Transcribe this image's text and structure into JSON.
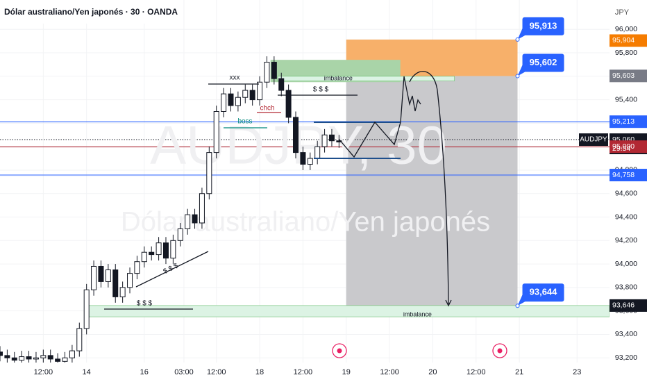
{
  "chart_data": {
    "type": "candlestick",
    "title": "Dólar australiano/Yen japonés · 30 · OANDA",
    "watermark": "AUDJPY, 30",
    "watermark_subtitle": "Dólar australiano/Yen japonés",
    "currency": "JPY",
    "symbol": "AUDJPY",
    "countdown": "29:54",
    "x": [
      0,
      4,
      8,
      12,
      16,
      20,
      24,
      28,
      32,
      36,
      40,
      44,
      48,
      52,
      56,
      60,
      64,
      68,
      72,
      76,
      80,
      84,
      88,
      92,
      96,
      100,
      104,
      108,
      112,
      116,
      120,
      124,
      128,
      132,
      136,
      140,
      144,
      148,
      152,
      156,
      160,
      164,
      168,
      172,
      176,
      180,
      184,
      188
    ],
    "open": [
      93.25,
      93.22,
      93.2,
      93.18,
      93.21,
      93.19,
      93.2,
      93.22,
      93.19,
      93.17,
      93.2,
      93.26,
      93.45,
      93.78,
      93.98,
      93.85,
      93.95,
      93.72,
      93.8,
      93.92,
      94.02,
      94.1,
      94.08,
      94.18,
      94.05,
      94.2,
      94.3,
      94.42,
      94.35,
      94.6,
      94.95,
      95.3,
      95.45,
      95.35,
      95.42,
      95.48,
      95.4,
      95.55,
      95.72,
      95.58,
      95.48,
      95.25,
      94.95,
      94.85,
      94.9,
      95.0,
      95.1,
      95.05
    ],
    "high": [
      93.3,
      93.27,
      93.25,
      93.26,
      93.26,
      93.25,
      93.27,
      93.27,
      93.24,
      93.25,
      93.31,
      93.5,
      93.83,
      94.03,
      94.03,
      94.0,
      94.0,
      93.85,
      93.97,
      94.07,
      94.15,
      94.15,
      94.23,
      94.23,
      94.25,
      94.35,
      94.47,
      94.47,
      94.65,
      95.0,
      95.35,
      95.5,
      95.5,
      95.47,
      95.53,
      95.53,
      95.6,
      95.77,
      95.77,
      95.63,
      95.53,
      95.3,
      95.0,
      94.95,
      95.05,
      95.15,
      95.15,
      95.1
    ],
    "low": [
      93.17,
      93.15,
      93.13,
      93.13,
      93.14,
      93.14,
      93.15,
      93.14,
      93.12,
      93.12,
      93.15,
      93.21,
      93.4,
      93.73,
      93.8,
      93.8,
      93.67,
      93.67,
      93.75,
      93.87,
      93.97,
      94.03,
      94.03,
      94.0,
      94.0,
      94.15,
      94.25,
      94.3,
      94.3,
      94.55,
      94.9,
      95.25,
      95.3,
      95.3,
      95.37,
      95.35,
      95.35,
      95.5,
      95.53,
      95.43,
      95.2,
      94.9,
      94.8,
      94.8,
      94.85,
      94.95,
      95.0,
      94.99
    ],
    "close": [
      93.22,
      93.2,
      93.18,
      93.21,
      93.19,
      93.2,
      93.22,
      93.19,
      93.17,
      93.2,
      93.26,
      93.45,
      93.78,
      93.98,
      93.85,
      93.95,
      93.72,
      93.8,
      93.92,
      94.02,
      94.1,
      94.08,
      94.18,
      94.05,
      94.2,
      94.3,
      94.42,
      94.35,
      94.6,
      94.95,
      95.3,
      95.45,
      95.35,
      95.42,
      95.48,
      95.4,
      95.55,
      95.72,
      95.58,
      95.48,
      95.25,
      94.95,
      94.85,
      94.9,
      95.0,
      95.1,
      95.05,
      95.04
    ],
    "color": "#131722",
    "xlim": [
      0,
      338
    ],
    "xticks": [
      {
        "value": 24,
        "label": "12:00"
      },
      {
        "value": 48,
        "label": "14"
      },
      {
        "value": 80,
        "label": "16"
      },
      {
        "value": 102,
        "label": "03:00"
      },
      {
        "value": 120,
        "label": "12:00"
      },
      {
        "value": 144,
        "label": "18"
      },
      {
        "value": 168,
        "label": "12:00"
      },
      {
        "value": 192,
        "label": "19"
      },
      {
        "value": 216,
        "label": "12:00"
      },
      {
        "value": 240,
        "label": "20"
      },
      {
        "value": 264,
        "label": "12:00"
      },
      {
        "value": 288,
        "label": "21"
      },
      {
        "value": 320,
        "label": "23"
      }
    ],
    "ylim": [
      93.16,
      96.25
    ],
    "yticks": [
      {
        "value": 93.2,
        "label": "93,200"
      },
      {
        "value": 93.4,
        "label": "93,400"
      },
      {
        "value": 93.6,
        "label": "93,600"
      },
      {
        "value": 93.8,
        "label": "93,800"
      },
      {
        "value": 94,
        "label": "94,000"
      },
      {
        "value": 94.2,
        "label": "94,200"
      },
      {
        "value": 94.4,
        "label": "94,400"
      },
      {
        "value": 94.6,
        "label": "94,600"
      },
      {
        "value": 94.8,
        "label": "94,800"
      },
      {
        "value": 95,
        "label": "95,000"
      },
      {
        "value": 95.2,
        "label": "95,200"
      },
      {
        "value": 95.4,
        "label": "95,400"
      },
      {
        "value": 95.6,
        "label": "95,600"
      },
      {
        "value": 95.8,
        "label": "95,800"
      },
      {
        "value": 96,
        "label": "96,000"
      }
    ],
    "zones": [
      {
        "x": [
          192,
          287
        ],
        "y": [
          93.644,
          95.602
        ],
        "color": "#c9c9cc"
      },
      {
        "x": [
          192,
          287
        ],
        "y": [
          95.602,
          95.913
        ],
        "color": "#f7b06a"
      },
      {
        "x": [
          150,
          222
        ],
        "y": [
          95.55,
          95.74
        ],
        "color": "#a9d4a8"
      },
      {
        "x": [
          154,
          252
        ],
        "y": [
          95.56,
          95.6
        ],
        "color": "#dcf3e4",
        "label": "imbalance"
      },
      {
        "x": [
          48,
          338
        ],
        "y": [
          93.55,
          93.646
        ],
        "color": "#dcf3e4",
        "label": "imbalance"
      }
    ],
    "levels": [
      {
        "value": 95.213,
        "label": "95,213",
        "color": "#2962ff"
      },
      {
        "value": 95.06,
        "label": "95,060",
        "color": "#131722"
      },
      {
        "value": 95,
        "label": "95,000",
        "color": "#b22833"
      },
      {
        "value": 94.758,
        "label": "94,758",
        "color": "#2962ff"
      }
    ],
    "price_tags": [
      {
        "value": 95.904,
        "label": "95,904",
        "color": "#f57c00"
      },
      {
        "value": 95.603,
        "label": "95,603",
        "color": "#787b86"
      },
      {
        "value": 93.646,
        "label": "93,646",
        "color": "#131722"
      }
    ],
    "callouts": [
      {
        "value": 95.913,
        "label": "95,913"
      },
      {
        "value": 95.602,
        "label": "95,602"
      },
      {
        "value": 93.644,
        "label": "93,644"
      }
    ],
    "annotations": [
      "xxx",
      "$ $ $",
      "chch",
      "boss",
      "$ $ $",
      "$ $ $"
    ]
  }
}
